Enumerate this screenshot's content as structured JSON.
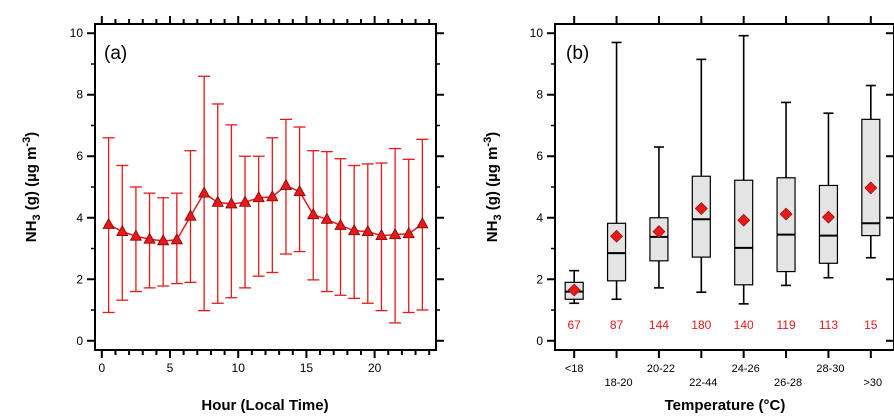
{
  "chart_data": [
    {
      "type": "line",
      "panel_label": "(a)",
      "xlabel": "Hour (Local Time)",
      "ylabel": "NH3 (g) (µg m-3)",
      "xlim": [
        -0.5,
        24.5
      ],
      "ylim": [
        -0.3,
        10.3
      ],
      "xticks": [
        "0",
        "5",
        "10",
        "15",
        "20"
      ],
      "yticks": [
        "0",
        "2",
        "4",
        "6",
        "8",
        "10"
      ],
      "grid": false,
      "color": "#e41a1c",
      "x": [
        0.5,
        1.5,
        2.5,
        3.5,
        4.5,
        5.5,
        6.5,
        7.5,
        8.5,
        9.5,
        10.5,
        11.5,
        12.5,
        13.5,
        14.5,
        15.5,
        16.5,
        17.5,
        18.5,
        19.5,
        20.5,
        21.5,
        22.5,
        23.5
      ],
      "series": [
        {
          "values": [
            3.78,
            3.55,
            3.4,
            3.3,
            3.25,
            3.28,
            4.05,
            4.8,
            4.5,
            4.45,
            4.5,
            4.65,
            4.68,
            5.05,
            4.85,
            4.1,
            3.95,
            3.75,
            3.58,
            3.55,
            3.42,
            3.45,
            3.48,
            3.8
          ],
          "upper": [
            6.6,
            5.7,
            5.0,
            4.8,
            4.65,
            4.8,
            6.18,
            8.6,
            7.7,
            7.02,
            6.0,
            6.0,
            6.6,
            7.2,
            6.95,
            6.18,
            6.15,
            5.92,
            5.7,
            5.75,
            5.78,
            6.25,
            5.9,
            6.55
          ],
          "lower": [
            0.92,
            1.32,
            1.6,
            1.72,
            1.78,
            1.86,
            1.9,
            0.98,
            1.22,
            1.4,
            1.72,
            2.1,
            2.22,
            2.82,
            2.9,
            1.98,
            1.6,
            1.48,
            1.38,
            1.22,
            0.98,
            0.58,
            0.92,
            1.0
          ]
        }
      ]
    },
    {
      "type": "box",
      "panel_label": "(b)",
      "xlabel": "Temperature (°C)",
      "ylabel": "NH3 (g) (µg m-3)",
      "ylim": [
        -0.3,
        10.3
      ],
      "yticks": [
        "0",
        "2",
        "4",
        "6",
        "8",
        "10"
      ],
      "grid": false,
      "categories": [
        "<18",
        "18-20",
        "20-22",
        "22-44",
        "24-26",
        "26-28",
        "28-30",
        ">30"
      ],
      "counts": [
        "67",
        "87",
        "144",
        "180",
        "140",
        "119",
        "113",
        "15"
      ],
      "mean_color": "#e41a1c",
      "boxes": [
        {
          "whisker_low": 1.22,
          "q1": 1.35,
          "median": 1.6,
          "q3": 1.9,
          "whisker_high": 2.28,
          "mean": 1.65
        },
        {
          "whisker_low": 1.35,
          "q1": 1.95,
          "median": 2.85,
          "q3": 3.82,
          "whisker_high": 9.7,
          "mean": 3.4
        },
        {
          "whisker_low": 1.72,
          "q1": 2.6,
          "median": 3.38,
          "q3": 4.0,
          "whisker_high": 6.3,
          "mean": 3.55
        },
        {
          "whisker_low": 1.58,
          "q1": 2.72,
          "median": 3.95,
          "q3": 5.35,
          "whisker_high": 9.15,
          "mean": 4.3
        },
        {
          "whisker_low": 1.2,
          "q1": 1.82,
          "median": 3.02,
          "q3": 5.22,
          "whisker_high": 9.92,
          "mean": 3.92
        },
        {
          "whisker_low": 1.8,
          "q1": 2.25,
          "median": 3.45,
          "q3": 5.3,
          "whisker_high": 7.75,
          "mean": 4.12
        },
        {
          "whisker_low": 2.05,
          "q1": 2.52,
          "median": 3.42,
          "q3": 5.05,
          "whisker_high": 7.4,
          "mean": 4.02
        },
        {
          "whisker_low": 2.7,
          "q1": 3.42,
          "median": 3.82,
          "q3": 7.2,
          "whisker_high": 8.3,
          "mean": 4.97
        }
      ]
    }
  ]
}
